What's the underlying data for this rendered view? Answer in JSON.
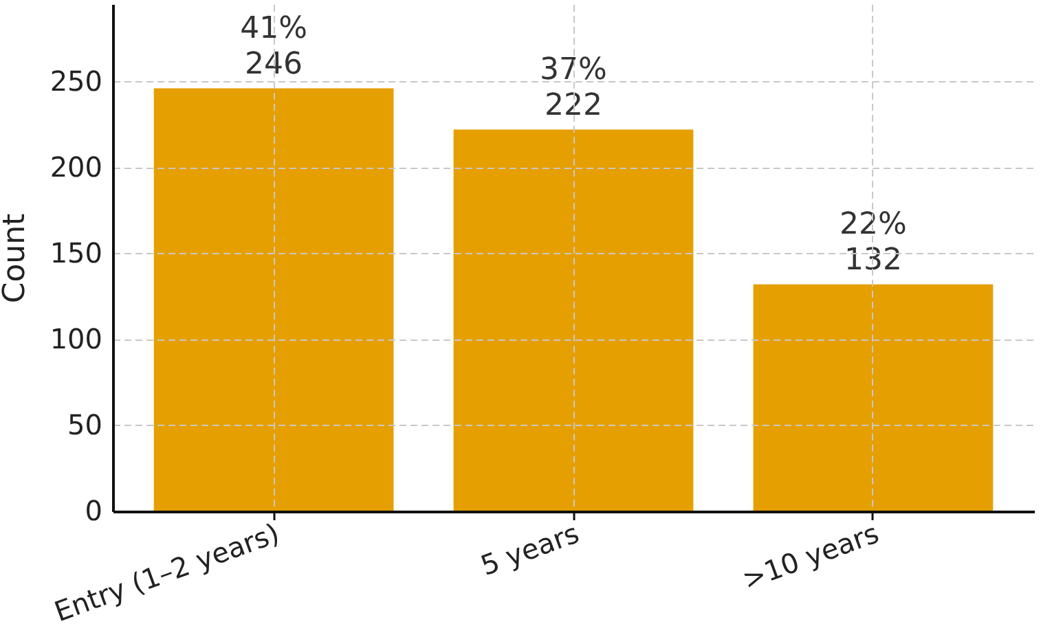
{
  "chart_data": {
    "type": "bar",
    "ylabel": "Count",
    "categories": [
      "Entry (1–2 years)",
      "5 years",
      ">10 years"
    ],
    "values": [
      246,
      222,
      132
    ],
    "color": "#e69f00",
    "value_labels": [
      "41%\n246",
      "37%\n222",
      "22%\n132"
    ],
    "ylim": [
      0,
      295
    ],
    "yticks": [
      0,
      50,
      100,
      150,
      200,
      250
    ],
    "grid": true
  }
}
